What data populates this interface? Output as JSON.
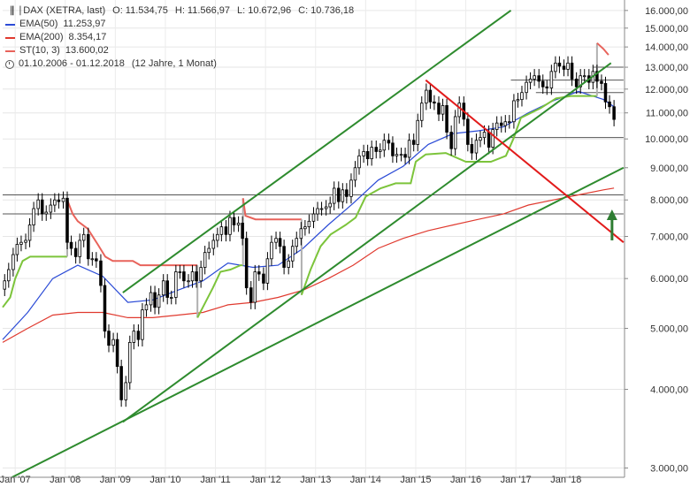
{
  "legend": {
    "instrument": "DAX (XETRA, last)",
    "o_label": "O:",
    "o_value": "11.534,75",
    "h_label": "H:",
    "h_value": "11.566,97",
    "l_label": "L:",
    "l_value": "10.672,96",
    "c_label": "C:",
    "c_value": "10.736,18",
    "ema50_label": "EMA(50)",
    "ema50_value": "11.253,97",
    "ema200_label": "EMA(200)",
    "ema200_value": "8.354,17",
    "st_label": "ST(10, 3)",
    "st_value": "13.600,02",
    "range": "01.10.2006 - 01.12.2018",
    "duration": "(12 Jahre, 1 Monat)"
  },
  "colors": {
    "candles": "#000000",
    "ema50": "#2b4bd6",
    "ema200": "#e03a2f",
    "st_up": "#7cc43b",
    "st_down": "#e8635b",
    "trend_green": "#2e8b2e",
    "trend_red": "#e21b1b",
    "horizontal": "#555555",
    "arrow": "#2e7d32"
  },
  "chart_data": {
    "type": "candlestick",
    "y_scale": "log",
    "ylim": [
      2900,
      16200
    ],
    "xlim": [
      2006.75,
      2019.17
    ],
    "x_ticks": [
      {
        "x": 2007.0,
        "label": "Jan '07"
      },
      {
        "x": 2008.0,
        "label": "Jan '08"
      },
      {
        "x": 2009.0,
        "label": "Jan '09"
      },
      {
        "x": 2010.0,
        "label": "Jan '10"
      },
      {
        "x": 2011.0,
        "label": "Jan '11"
      },
      {
        "x": 2012.0,
        "label": "Jan '12"
      },
      {
        "x": 2013.0,
        "label": "Jan '13"
      },
      {
        "x": 2014.0,
        "label": "Jan '14"
      },
      {
        "x": 2015.0,
        "label": "Jan '15"
      },
      {
        "x": 2016.0,
        "label": "Jan '16"
      },
      {
        "x": 2017.0,
        "label": "Jan '17"
      },
      {
        "x": 2018.0,
        "label": "Jan '18"
      }
    ],
    "y_ticks": [
      {
        "v": 16000,
        "label": "16.000,00"
      },
      {
        "v": 15000,
        "label": "15.000,00"
      },
      {
        "v": 14000,
        "label": "14.000,00"
      },
      {
        "v": 13000,
        "label": "13.000,00"
      },
      {
        "v": 12000,
        "label": "12.000,00"
      },
      {
        "v": 11000,
        "label": "11.000,00"
      },
      {
        "v": 10000,
        "label": "10.000,00"
      },
      {
        "v": 9000,
        "label": "9.000,00"
      },
      {
        "v": 8000,
        "label": "8.000,00"
      },
      {
        "v": 7000,
        "label": "7.000,00"
      },
      {
        "v": 6000,
        "label": "6.000,00"
      },
      {
        "v": 5000,
        "label": "5.000,00"
      },
      {
        "v": 4000,
        "label": "4.000,00"
      },
      {
        "v": 3000,
        "label": "3.000,00"
      }
    ],
    "close": [
      [
        2006.79,
        5950
      ],
      [
        2006.87,
        6200
      ],
      [
        2006.96,
        6550
      ],
      [
        2007.04,
        6800
      ],
      [
        2007.12,
        6850
      ],
      [
        2007.21,
        6900
      ],
      [
        2007.29,
        7300
      ],
      [
        2007.37,
        7750
      ],
      [
        2007.46,
        8000
      ],
      [
        2007.54,
        7600
      ],
      [
        2007.62,
        7650
      ],
      [
        2007.71,
        7850
      ],
      [
        2007.79,
        8000
      ],
      [
        2007.87,
        7950
      ],
      [
        2007.96,
        8050
      ],
      [
        2008.04,
        6850
      ],
      [
        2008.12,
        6700
      ],
      [
        2008.21,
        6500
      ],
      [
        2008.29,
        6900
      ],
      [
        2008.37,
        7050
      ],
      [
        2008.46,
        6450
      ],
      [
        2008.54,
        6450
      ],
      [
        2008.62,
        6400
      ],
      [
        2008.71,
        5850
      ],
      [
        2008.79,
        4950
      ],
      [
        2008.87,
        4700
      ],
      [
        2008.96,
        4800
      ],
      [
        2009.04,
        4350
      ],
      [
        2009.12,
        3850
      ],
      [
        2009.21,
        4100
      ],
      [
        2009.29,
        4750
      ],
      [
        2009.37,
        4950
      ],
      [
        2009.46,
        4800
      ],
      [
        2009.54,
        5350
      ],
      [
        2009.62,
        5450
      ],
      [
        2009.71,
        5700
      ],
      [
        2009.79,
        5400
      ],
      [
        2009.87,
        5650
      ],
      [
        2009.96,
        5950
      ],
      [
        2010.04,
        5600
      ],
      [
        2010.12,
        5600
      ],
      [
        2010.21,
        6150
      ],
      [
        2010.29,
        6150
      ],
      [
        2010.37,
        5950
      ],
      [
        2010.46,
        5950
      ],
      [
        2010.54,
        6150
      ],
      [
        2010.62,
        5950
      ],
      [
        2010.71,
        6250
      ],
      [
        2010.79,
        6600
      ],
      [
        2010.87,
        6700
      ],
      [
        2010.96,
        6900
      ],
      [
        2011.04,
        7050
      ],
      [
        2011.12,
        7250
      ],
      [
        2011.21,
        7050
      ],
      [
        2011.29,
        7500
      ],
      [
        2011.37,
        7300
      ],
      [
        2011.46,
        7350
      ],
      [
        2011.54,
        6950
      ],
      [
        2011.62,
        5800
      ],
      [
        2011.71,
        5500
      ],
      [
        2011.79,
        6150
      ],
      [
        2011.87,
        6100
      ],
      [
        2011.96,
        5900
      ],
      [
        2012.04,
        6450
      ],
      [
        2012.12,
        6850
      ],
      [
        2012.21,
        6950
      ],
      [
        2012.29,
        6750
      ],
      [
        2012.37,
        6250
      ],
      [
        2012.46,
        6400
      ],
      [
        2012.54,
        6750
      ],
      [
        2012.62,
        6950
      ],
      [
        2012.71,
        7200
      ],
      [
        2012.79,
        7250
      ],
      [
        2012.87,
        7400
      ],
      [
        2012.96,
        7600
      ],
      [
        2013.04,
        7750
      ],
      [
        2013.12,
        7750
      ],
      [
        2013.21,
        7800
      ],
      [
        2013.29,
        7900
      ],
      [
        2013.37,
        8350
      ],
      [
        2013.46,
        7950
      ],
      [
        2013.54,
        8300
      ],
      [
        2013.62,
        8100
      ],
      [
        2013.71,
        8600
      ],
      [
        2013.79,
        9000
      ],
      [
        2013.87,
        9400
      ],
      [
        2013.96,
        9550
      ],
      [
        2014.04,
        9300
      ],
      [
        2014.12,
        9700
      ],
      [
        2014.21,
        9550
      ],
      [
        2014.29,
        9600
      ],
      [
        2014.37,
        9950
      ],
      [
        2014.46,
        9850
      ],
      [
        2014.54,
        9400
      ],
      [
        2014.62,
        9450
      ],
      [
        2014.71,
        9450
      ],
      [
        2014.79,
        9350
      ],
      [
        2014.87,
        9950
      ],
      [
        2014.96,
        9800
      ],
      [
        2015.04,
        10700
      ],
      [
        2015.12,
        11400
      ],
      [
        2015.21,
        11950
      ],
      [
        2015.29,
        11450
      ],
      [
        2015.37,
        11400
      ],
      [
        2015.46,
        10950
      ],
      [
        2015.54,
        11300
      ],
      [
        2015.62,
        10250
      ],
      [
        2015.71,
        9650
      ],
      [
        2015.79,
        10850
      ],
      [
        2015.87,
        11400
      ],
      [
        2015.96,
        10750
      ],
      [
        2016.04,
        9800
      ],
      [
        2016.12,
        9500
      ],
      [
        2016.21,
        9950
      ],
      [
        2016.29,
        10050
      ],
      [
        2016.37,
        10250
      ],
      [
        2016.46,
        9700
      ],
      [
        2016.54,
        10350
      ],
      [
        2016.62,
        10600
      ],
      [
        2016.71,
        10500
      ],
      [
        2016.79,
        10650
      ],
      [
        2016.87,
        10650
      ],
      [
        2016.96,
        11500
      ],
      [
        2017.04,
        11550
      ],
      [
        2017.12,
        11850
      ],
      [
        2017.21,
        12300
      ],
      [
        2017.29,
        12450
      ],
      [
        2017.37,
        12600
      ],
      [
        2017.46,
        12350
      ],
      [
        2017.54,
        12100
      ],
      [
        2017.62,
        12050
      ],
      [
        2017.71,
        12800
      ],
      [
        2017.79,
        13200
      ],
      [
        2017.87,
        13050
      ],
      [
        2017.96,
        12900
      ],
      [
        2018.04,
        13200
      ],
      [
        2018.12,
        12450
      ],
      [
        2018.21,
        12100
      ],
      [
        2018.29,
        12600
      ],
      [
        2018.37,
        12600
      ],
      [
        2018.46,
        12300
      ],
      [
        2018.54,
        12800
      ],
      [
        2018.62,
        12350
      ],
      [
        2018.71,
        12250
      ],
      [
        2018.79,
        11450
      ],
      [
        2018.87,
        11250
      ],
      [
        2018.96,
        10740
      ]
    ],
    "ema50": [
      [
        2006.75,
        4800
      ],
      [
        2007.25,
        5300
      ],
      [
        2007.75,
        6000
      ],
      [
        2008.25,
        6300
      ],
      [
        2008.75,
        6050
      ],
      [
        2009.25,
        5500
      ],
      [
        2009.75,
        5550
      ],
      [
        2010.25,
        5750
      ],
      [
        2010.75,
        5950
      ],
      [
        2011.25,
        6350
      ],
      [
        2011.75,
        6250
      ],
      [
        2012.25,
        6300
      ],
      [
        2012.75,
        6700
      ],
      [
        2013.25,
        7300
      ],
      [
        2013.75,
        7900
      ],
      [
        2014.25,
        8600
      ],
      [
        2014.75,
        9050
      ],
      [
        2015.25,
        9800
      ],
      [
        2015.75,
        10200
      ],
      [
        2016.25,
        10300
      ],
      [
        2016.75,
        10450
      ],
      [
        2017.25,
        11000
      ],
      [
        2017.75,
        11500
      ],
      [
        2018.25,
        11900
      ],
      [
        2018.75,
        11550
      ],
      [
        2018.96,
        11254
      ]
    ],
    "ema200": [
      [
        2006.75,
        4750
      ],
      [
        2007.25,
        5000
      ],
      [
        2007.75,
        5250
      ],
      [
        2008.25,
        5300
      ],
      [
        2008.75,
        5300
      ],
      [
        2009.25,
        5200
      ],
      [
        2009.75,
        5200
      ],
      [
        2010.25,
        5250
      ],
      [
        2010.75,
        5300
      ],
      [
        2011.25,
        5450
      ],
      [
        2011.75,
        5500
      ],
      [
        2012.25,
        5600
      ],
      [
        2012.75,
        5750
      ],
      [
        2013.25,
        6000
      ],
      [
        2013.75,
        6300
      ],
      [
        2014.25,
        6700
      ],
      [
        2014.75,
        6950
      ],
      [
        2015.25,
        7150
      ],
      [
        2015.75,
        7300
      ],
      [
        2016.25,
        7450
      ],
      [
        2016.75,
        7600
      ],
      [
        2017.25,
        7850
      ],
      [
        2017.75,
        8000
      ],
      [
        2018.25,
        8150
      ],
      [
        2018.75,
        8300
      ],
      [
        2018.96,
        8354
      ]
    ],
    "supertrend": [
      {
        "dir": "up",
        "points": [
          [
            2006.75,
            5400
          ],
          [
            2006.9,
            5600
          ],
          [
            2007.0,
            6000
          ],
          [
            2007.15,
            6400
          ],
          [
            2007.3,
            6500
          ],
          [
            2007.6,
            6500
          ],
          [
            2007.75,
            6500
          ],
          [
            2008.0,
            6500
          ],
          [
            2008.04,
            6500
          ]
        ]
      },
      {
        "dir": "down",
        "points": [
          [
            2008.04,
            8000
          ],
          [
            2008.15,
            7600
          ],
          [
            2008.25,
            7400
          ],
          [
            2008.45,
            7200
          ],
          [
            2008.65,
            6800
          ],
          [
            2008.8,
            6500
          ],
          [
            2008.95,
            6400
          ],
          [
            2009.35,
            6400
          ],
          [
            2009.5,
            6300
          ],
          [
            2009.9,
            6300
          ],
          [
            2010.6,
            6300
          ],
          [
            2010.64,
            6300
          ]
        ]
      },
      {
        "dir": "up",
        "points": [
          [
            2010.64,
            5200
          ],
          [
            2010.8,
            5500
          ],
          [
            2010.95,
            5800
          ],
          [
            2011.1,
            6150
          ],
          [
            2011.3,
            6200
          ],
          [
            2011.5,
            6300
          ],
          [
            2011.55,
            6300
          ]
        ]
      },
      {
        "dir": "down",
        "points": [
          [
            2011.55,
            8050
          ],
          [
            2011.6,
            7550
          ],
          [
            2011.8,
            7450
          ],
          [
            2012.2,
            7450
          ],
          [
            2012.6,
            7450
          ],
          [
            2012.72,
            7450
          ]
        ]
      },
      {
        "dir": "up",
        "points": [
          [
            2012.72,
            5650
          ],
          [
            2012.9,
            6200
          ],
          [
            2013.1,
            6750
          ],
          [
            2013.3,
            7050
          ],
          [
            2013.6,
            7300
          ],
          [
            2013.8,
            7500
          ],
          [
            2014.0,
            8100
          ],
          [
            2014.3,
            8350
          ],
          [
            2014.6,
            8500
          ],
          [
            2014.9,
            8500
          ],
          [
            2015.0,
            9200
          ],
          [
            2015.2,
            9450
          ],
          [
            2015.6,
            9500
          ],
          [
            2016.0,
            9200
          ],
          [
            2016.5,
            9200
          ],
          [
            2016.8,
            9400
          ],
          [
            2016.95,
            10000
          ],
          [
            2017.1,
            10800
          ],
          [
            2017.5,
            11200
          ],
          [
            2017.8,
            11600
          ],
          [
            2018.1,
            11700
          ],
          [
            2018.45,
            11700
          ],
          [
            2018.6,
            11700
          ],
          [
            2018.62,
            11700
          ]
        ]
      },
      {
        "dir": "down",
        "points": [
          [
            2018.62,
            14200
          ],
          [
            2018.75,
            13900
          ],
          [
            2018.85,
            13600
          ]
        ]
      }
    ],
    "trendlines": [
      {
        "name": "green-upper-channel",
        "color": "trend_green",
        "p1": [
          2009.15,
          5700
        ],
        "p2": [
          2016.9,
          16000
        ]
      },
      {
        "name": "green-lower-channel",
        "color": "trend_green",
        "p1": [
          2009.15,
          3550
        ],
        "p2": [
          2018.9,
          13200
        ]
      },
      {
        "name": "green-long-term",
        "color": "trend_green",
        "p1": [
          2006.75,
          2850
        ],
        "p2": [
          2019.15,
          9000
        ]
      },
      {
        "name": "red-downtrend",
        "color": "trend_red",
        "p1": [
          2015.2,
          12400
        ],
        "p2": [
          2019.15,
          6850
        ]
      }
    ],
    "horizontal_lines": [
      {
        "v": 13000,
        "x_from": 2018.55,
        "x_to": 2019.15
      },
      {
        "v": 12400,
        "x_from": 2016.9,
        "x_to": 2019.15
      },
      {
        "v": 11850,
        "x_from": 2017.4,
        "x_to": 2019.15
      },
      {
        "v": 10050,
        "x_from": 2016.9,
        "x_to": 2019.15
      },
      {
        "v": 8150,
        "x_from": 2006.75,
        "x_to": 2019.15
      },
      {
        "v": 7600,
        "x_from": 2006.75,
        "x_to": 2019.15
      }
    ],
    "annotation": {
      "type": "arrow-up",
      "x": 2018.92,
      "from": 6900,
      "to": 7650
    }
  }
}
